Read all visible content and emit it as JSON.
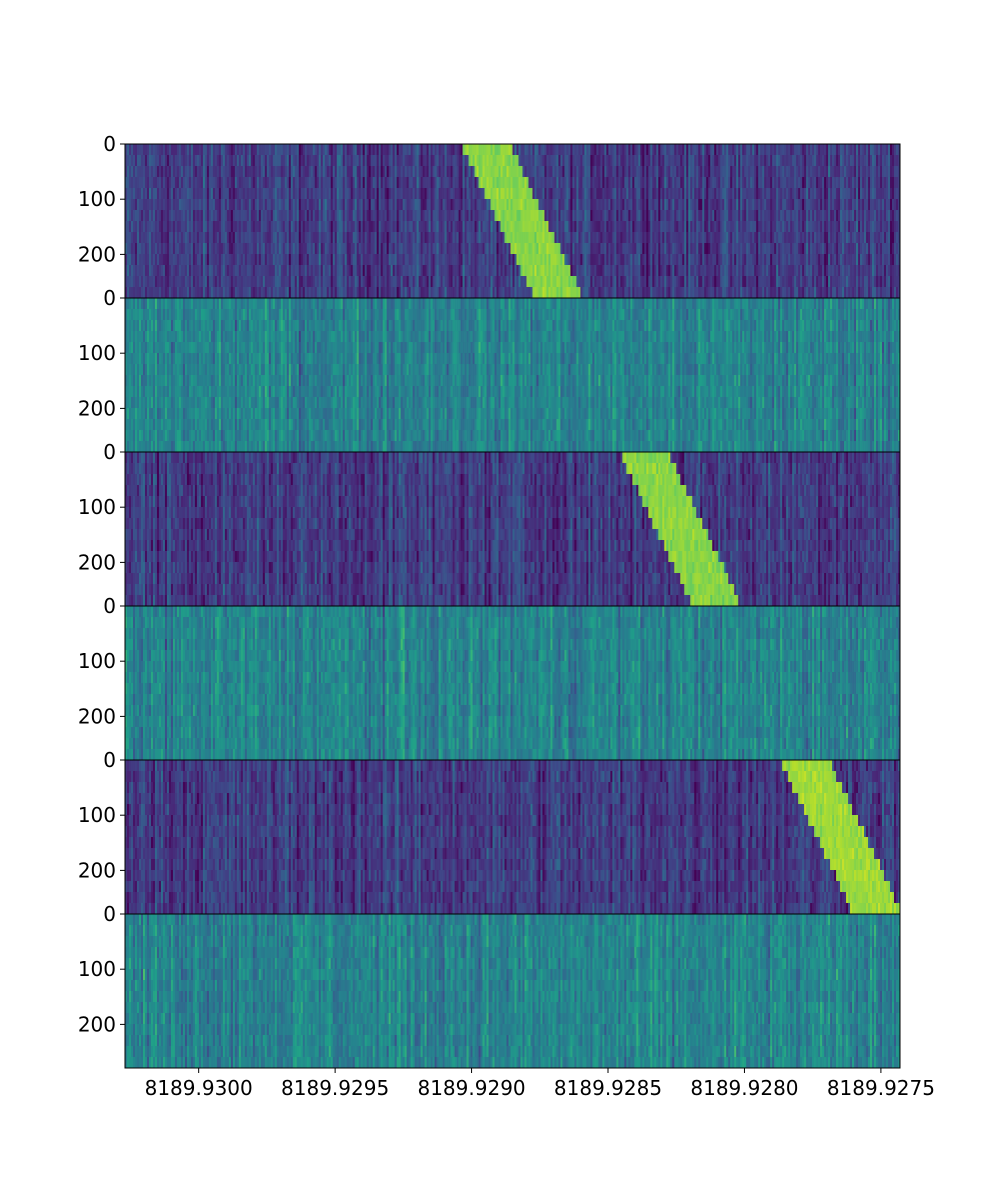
{
  "chart_data": {
    "type": "heatmap",
    "title": "",
    "xlabel": "",
    "ylabel": "",
    "colormap": "viridis",
    "x_range": [
      8189.93027,
      8189.92743
    ],
    "x_ticks": [
      {
        "value": 8189.93,
        "label": "8189.9300"
      },
      {
        "value": 8189.9295,
        "label": "8189.9295"
      },
      {
        "value": 8189.929,
        "label": "8189.9290"
      },
      {
        "value": 8189.9285,
        "label": "8189.9285"
      },
      {
        "value": 8189.928,
        "label": "8189.9280"
      },
      {
        "value": 8189.9275,
        "label": "8189.9275"
      }
    ],
    "y_range": [
      0,
      279
    ],
    "y_ticks": [
      {
        "value": 0,
        "label": "0"
      },
      {
        "value": 100,
        "label": "100"
      },
      {
        "value": 200,
        "label": "200"
      }
    ],
    "panels": [
      {
        "kind": "on",
        "background_level": 0.18,
        "signal_level": 0.82,
        "signal_start": 8189.92895,
        "signal_end": 8189.92868,
        "signal_width": 0.00018
      },
      {
        "kind": "off",
        "background_level": 0.45
      },
      {
        "kind": "on",
        "background_level": 0.18,
        "signal_level": 0.82,
        "signal_start": 8189.92837,
        "signal_end": 8189.9281,
        "signal_width": 0.00018
      },
      {
        "kind": "off",
        "background_level": 0.45
      },
      {
        "kind": "on",
        "background_level": 0.18,
        "signal_level": 0.86,
        "signal_start": 8189.92778,
        "signal_end": 8189.92751,
        "signal_width": 0.00018
      },
      {
        "kind": "off",
        "background_level": 0.45
      }
    ],
    "colors": {
      "viridis_stops": [
        "#440154",
        "#482878",
        "#3e4989",
        "#31688e",
        "#26828e",
        "#1f9e89",
        "#35b779",
        "#6ece58",
        "#b5de2b",
        "#fde725"
      ],
      "frame": "#000000"
    },
    "grid": false,
    "legend": "none"
  }
}
